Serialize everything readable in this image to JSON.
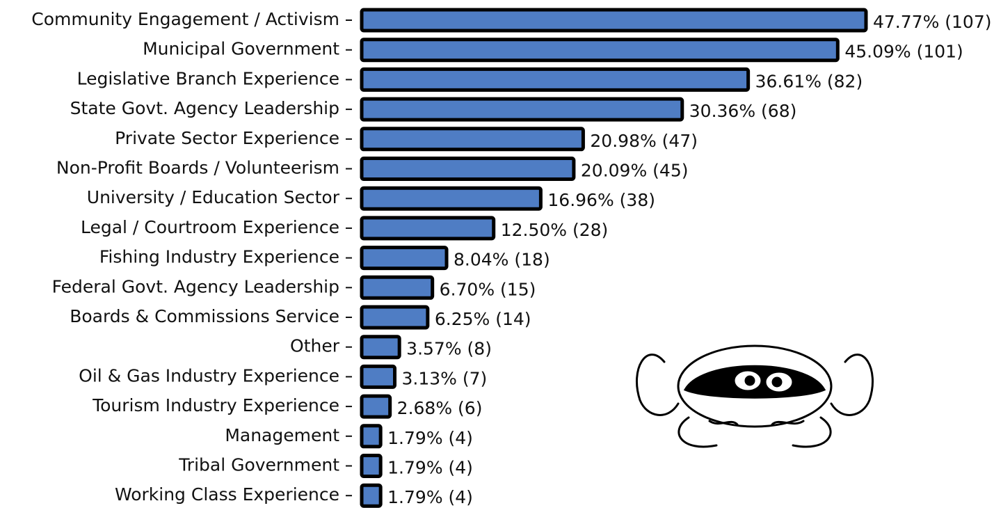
{
  "chart_data": {
    "type": "bar",
    "orientation": "horizontal",
    "color": "#4f7dc4",
    "categories": [
      "Community Engagement / Activism",
      "Municipal Government",
      "Legislative Branch Experience",
      "State Govt. Agency Leadership",
      "Private Sector Experience",
      "Non-Profit Boards / Volunteerism",
      "University / Education Sector",
      "Legal / Courtroom Experience",
      "Fishing Industry Experience",
      "Federal Govt. Agency Leadership",
      "Boards & Commissions Service",
      "Other",
      "Oil & Gas Industry Experience",
      "Tourism Industry Experience",
      "Management",
      "Tribal Government",
      "Working Class Experience"
    ],
    "values": [
      47.77,
      45.09,
      36.61,
      30.36,
      20.98,
      20.09,
      16.96,
      12.5,
      8.04,
      6.7,
      6.25,
      3.57,
      3.13,
      2.68,
      1.79,
      1.79,
      1.79
    ],
    "value_labels": [
      "47.77% (107)",
      "45.09% (101)",
      "36.61% (82)",
      "30.36% (68)",
      "20.98% (47)",
      "20.09% (45)",
      "16.96% (38)",
      "12.50% (28)",
      "8.04% (18)",
      "6.70% (15)",
      "6.25% (14)",
      "3.57% (8)",
      "3.13% (7)",
      "2.68% (6)",
      "1.79% (4)",
      "1.79% (4)",
      "1.79% (4)"
    ]
  }
}
